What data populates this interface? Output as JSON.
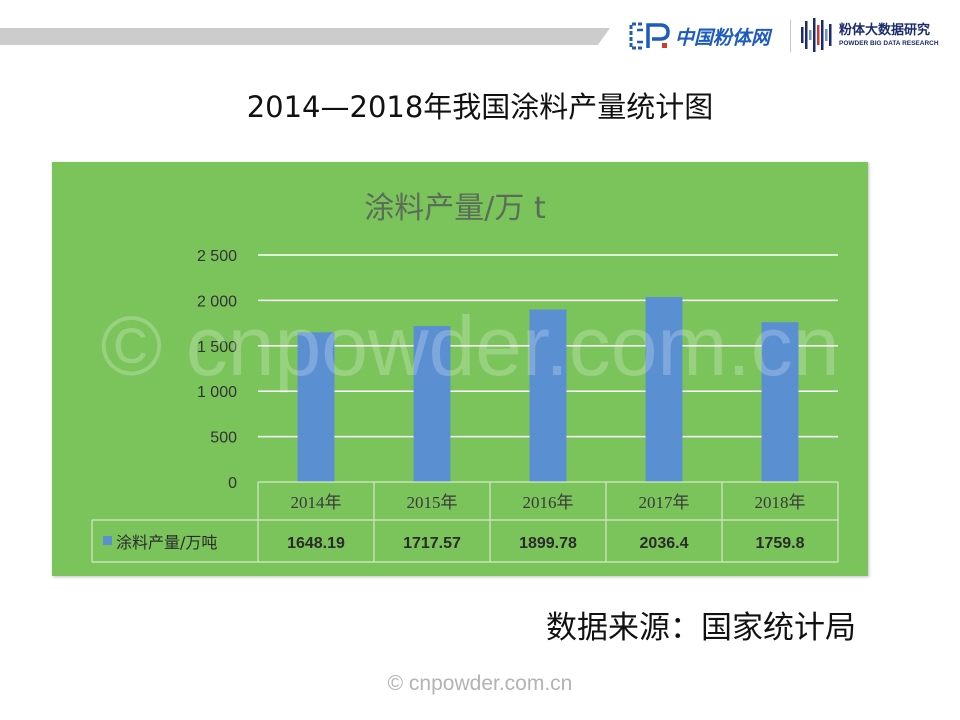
{
  "header": {
    "logo1_text": "中国粉体网",
    "logo2_title": "粉体大数据研究",
    "logo2_subtitle": "POWDER BIG DATA RESEARCH"
  },
  "slide_title": "2014—2018年我国涂料产量统计图",
  "chart_data": {
    "type": "bar",
    "title": "涂料产量/万 t",
    "categories": [
      "2014年",
      "2015年",
      "2016年",
      "2017年",
      "2018年"
    ],
    "series": [
      {
        "name": "涂料产量/万吨",
        "values": [
          1648.19,
          1717.57,
          1899.78,
          2036.4,
          1759.8
        ]
      }
    ],
    "ylim": [
      0,
      2500
    ],
    "yticks": [
      0,
      500,
      1000,
      1500,
      2000,
      2500
    ],
    "ytick_labels": [
      "0",
      "500",
      "1 000",
      "1 500",
      "2 000",
      "2 500"
    ],
    "grid": true,
    "legend": "data-table",
    "colors": {
      "background": "#7bc45c",
      "bar": "#5a8fd2"
    }
  },
  "watermark": "© cnpowder.com.cn",
  "source": "数据来源：国家统计局"
}
